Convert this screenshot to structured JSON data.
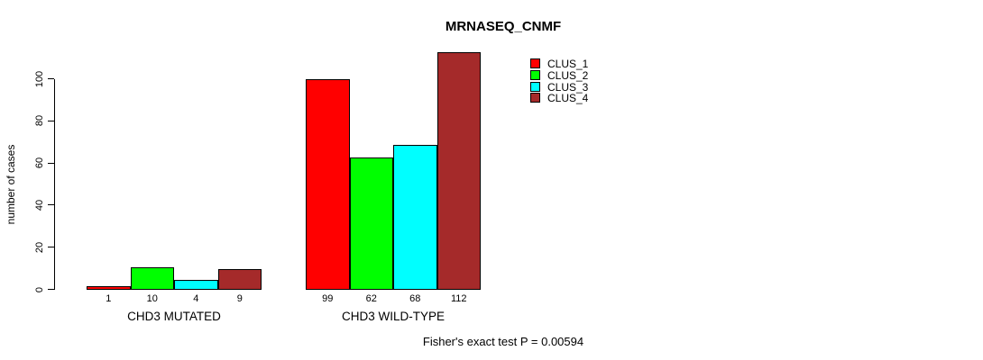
{
  "title": "MRNASEQ_CNMF",
  "footer": "Fisher's exact test P = 0.00594",
  "chart_data": {
    "type": "bar",
    "title": "MRNASEQ_CNMF",
    "xlabel": "",
    "ylabel": "number of cases",
    "ylim": [
      0,
      112
    ],
    "yticks": [
      0,
      20,
      40,
      60,
      80,
      100
    ],
    "grid": false,
    "legend_position": "top-right-of-plot",
    "categories": [
      "CHD3 MUTATED",
      "CHD3 WILD-TYPE"
    ],
    "series": [
      {
        "name": "CLUS_1",
        "color": "#ff0000",
        "values": [
          1,
          99
        ]
      },
      {
        "name": "CLUS_2",
        "color": "#00ff00",
        "values": [
          10,
          62
        ]
      },
      {
        "name": "CLUS_3",
        "color": "#00ffff",
        "values": [
          4,
          68
        ]
      },
      {
        "name": "CLUS_4",
        "color": "#a52a2a",
        "values": [
          9,
          112
        ]
      }
    ],
    "bar_value_labels": [
      [
        1,
        10,
        4,
        9
      ],
      [
        99,
        62,
        68,
        112
      ]
    ],
    "annotation": "Fisher's exact test P = 0.00594"
  }
}
